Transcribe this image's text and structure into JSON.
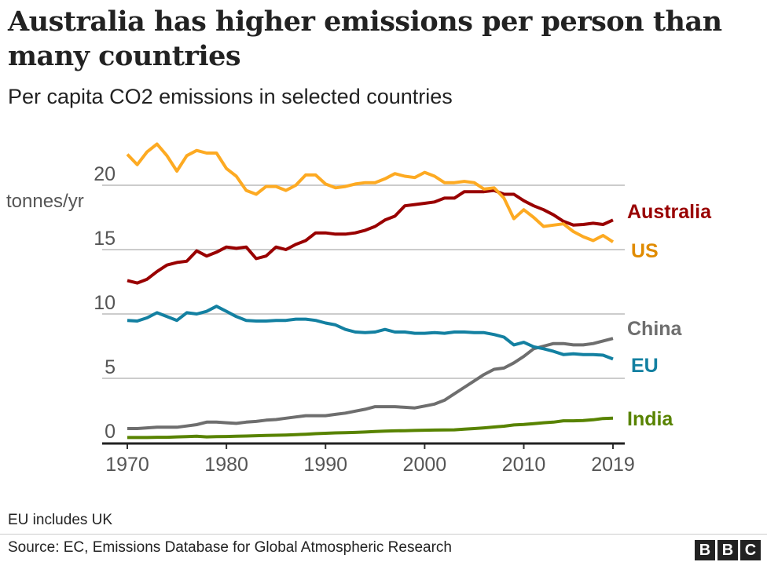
{
  "title": "Australia has higher emissions per person than many countries",
  "subtitle": "Per capita CO2 emissions in selected countries",
  "note": "EU includes UK",
  "source": "Source: EC, Emissions Database for Global Atmospheric Research",
  "logo": "BBC",
  "chart_data": {
    "type": "line",
    "ylabel": "tonnes/yr",
    "ylim": [
      0,
      20
    ],
    "yticks": [
      0,
      5,
      10,
      15,
      20
    ],
    "xticks": [
      1970,
      1980,
      1990,
      2000,
      2010,
      2019
    ],
    "xlim": [
      1970,
      2019
    ],
    "grid": true,
    "legend": "direct labels at line ends",
    "x": [
      1970,
      1971,
      1972,
      1973,
      1974,
      1975,
      1976,
      1977,
      1978,
      1979,
      1980,
      1981,
      1982,
      1983,
      1984,
      1985,
      1986,
      1987,
      1988,
      1989,
      1990,
      1991,
      1992,
      1993,
      1994,
      1995,
      1996,
      1997,
      1998,
      1999,
      2000,
      2001,
      2002,
      2003,
      2004,
      2005,
      2006,
      2007,
      2008,
      2009,
      2010,
      2011,
      2012,
      2013,
      2014,
      2015,
      2016,
      2017,
      2018,
      2019
    ],
    "series": [
      {
        "name": "Australia",
        "color": "#990000",
        "labelColor": "#990000",
        "values": [
          12.6,
          12.4,
          12.7,
          13.3,
          13.8,
          14.0,
          14.1,
          14.9,
          14.5,
          14.8,
          15.2,
          15.1,
          15.2,
          14.3,
          14.5,
          15.2,
          15.0,
          15.4,
          15.7,
          16.3,
          16.3,
          16.2,
          16.2,
          16.3,
          16.5,
          16.8,
          17.3,
          17.6,
          18.4,
          18.5,
          18.6,
          18.7,
          19.0,
          19.0,
          19.5,
          19.5,
          19.5,
          19.6,
          19.3,
          19.3,
          18.8,
          18.4,
          18.1,
          17.7,
          17.2,
          16.9,
          16.95,
          17.05,
          16.95,
          17.3
        ]
      },
      {
        "name": "US",
        "color": "#FDAA22",
        "labelColor": "#E08B00",
        "values": [
          22.4,
          21.6,
          22.6,
          23.2,
          22.3,
          21.1,
          22.3,
          22.7,
          22.5,
          22.5,
          21.3,
          20.7,
          19.6,
          19.3,
          19.9,
          19.9,
          19.6,
          20.0,
          20.8,
          20.8,
          20.1,
          19.8,
          19.9,
          20.1,
          20.2,
          20.2,
          20.5,
          20.9,
          20.7,
          20.6,
          21.0,
          20.7,
          20.2,
          20.2,
          20.3,
          20.2,
          19.7,
          19.8,
          19.0,
          17.4,
          18.1,
          17.5,
          16.8,
          16.9,
          17.0,
          16.4,
          16.0,
          15.7,
          16.1,
          15.6
        ]
      },
      {
        "name": "China",
        "color": "#6E6E6E",
        "labelColor": "#6E6E6E",
        "values": [
          1.1,
          1.1,
          1.15,
          1.2,
          1.2,
          1.2,
          1.3,
          1.4,
          1.6,
          1.6,
          1.55,
          1.5,
          1.6,
          1.65,
          1.75,
          1.8,
          1.9,
          2.0,
          2.1,
          2.1,
          2.1,
          2.2,
          2.3,
          2.45,
          2.6,
          2.8,
          2.8,
          2.8,
          2.75,
          2.7,
          2.85,
          3.0,
          3.3,
          3.8,
          4.3,
          4.8,
          5.3,
          5.7,
          5.8,
          6.2,
          6.7,
          7.3,
          7.5,
          7.7,
          7.7,
          7.6,
          7.6,
          7.7,
          7.9,
          8.1
        ]
      },
      {
        "name": "EU",
        "color": "#1380A1",
        "labelColor": "#1380A1",
        "values": [
          9.5,
          9.45,
          9.7,
          10.1,
          9.8,
          9.5,
          10.1,
          10.0,
          10.2,
          10.6,
          10.2,
          9.8,
          9.5,
          9.45,
          9.45,
          9.5,
          9.5,
          9.6,
          9.6,
          9.5,
          9.3,
          9.15,
          8.8,
          8.6,
          8.55,
          8.6,
          8.8,
          8.6,
          8.6,
          8.5,
          8.5,
          8.55,
          8.5,
          8.6,
          8.6,
          8.55,
          8.55,
          8.4,
          8.2,
          7.6,
          7.8,
          7.45,
          7.3,
          7.1,
          6.85,
          6.9,
          6.85,
          6.85,
          6.8,
          6.5
        ]
      },
      {
        "name": "India",
        "color": "#588300",
        "labelColor": "#588300",
        "values": [
          0.4,
          0.4,
          0.4,
          0.42,
          0.42,
          0.45,
          0.47,
          0.5,
          0.45,
          0.47,
          0.48,
          0.5,
          0.52,
          0.54,
          0.56,
          0.58,
          0.6,
          0.63,
          0.66,
          0.7,
          0.73,
          0.76,
          0.78,
          0.8,
          0.83,
          0.87,
          0.9,
          0.92,
          0.93,
          0.95,
          0.97,
          0.98,
          0.99,
          1.0,
          1.05,
          1.1,
          1.15,
          1.22,
          1.28,
          1.38,
          1.42,
          1.48,
          1.55,
          1.6,
          1.7,
          1.7,
          1.72,
          1.78,
          1.88,
          1.9
        ]
      }
    ]
  }
}
